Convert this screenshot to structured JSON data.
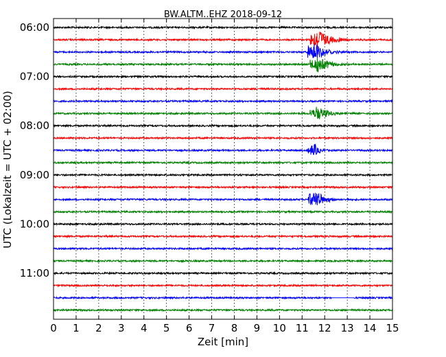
{
  "chart_data": {
    "type": "line",
    "title": "BW.ALTM..EHZ 2018-09-12",
    "xlabel": "Zeit  [min]",
    "ylabel": "UTC (Lokalzeit = UTC + 02:00)",
    "xlim": [
      0,
      15
    ],
    "x_ticks": [
      "0",
      "1",
      "2",
      "3",
      "4",
      "5",
      "6",
      "7",
      "8",
      "9",
      "10",
      "11",
      "12",
      "13",
      "14",
      "15"
    ],
    "y_ticks": [
      {
        "label": "06:00",
        "row": 0
      },
      {
        "label": "07:00",
        "row": 4
      },
      {
        "label": "08:00",
        "row": 8
      },
      {
        "label": "09:00",
        "row": 12
      },
      {
        "label": "10:00",
        "row": 16
      },
      {
        "label": "11:00",
        "row": 20
      }
    ],
    "row_interval_minutes": 15,
    "grid": "vertical-dotted",
    "colors": [
      "#000000",
      "#ff0000",
      "#0000ff",
      "#008000"
    ],
    "series": [
      {
        "row": 0,
        "color": "#000000",
        "noise": 1.0
      },
      {
        "row": 1,
        "color": "#ff0000",
        "noise": 1.0,
        "events": [
          {
            "t": 11.6,
            "amp": 20,
            "decay": 0.5
          }
        ]
      },
      {
        "row": 2,
        "color": "#0000ff",
        "noise": 1.0,
        "events": [
          {
            "t": 11.5,
            "amp": 18,
            "decay": 0.4
          }
        ]
      },
      {
        "row": 3,
        "color": "#008000",
        "noise": 1.0,
        "events": [
          {
            "t": 11.6,
            "amp": 14,
            "decay": 0.5
          }
        ]
      },
      {
        "row": 4,
        "color": "#000000",
        "noise": 1.0
      },
      {
        "row": 5,
        "color": "#ff0000",
        "noise": 1.0
      },
      {
        "row": 6,
        "color": "#0000ff",
        "noise": 1.0
      },
      {
        "row": 7,
        "color": "#008000",
        "noise": 1.0,
        "events": [
          {
            "t": 11.6,
            "amp": 12,
            "decay": 0.5
          }
        ]
      },
      {
        "row": 8,
        "color": "#000000",
        "noise": 1.0
      },
      {
        "row": 9,
        "color": "#ff0000",
        "noise": 1.0
      },
      {
        "row": 10,
        "color": "#0000ff",
        "noise": 1.0,
        "events": [
          {
            "t": 11.5,
            "amp": 12,
            "decay": 0.2
          }
        ]
      },
      {
        "row": 11,
        "color": "#008000",
        "noise": 1.0
      },
      {
        "row": 12,
        "color": "#000000",
        "noise": 1.0
      },
      {
        "row": 13,
        "color": "#ff0000",
        "noise": 1.0
      },
      {
        "row": 14,
        "color": "#0000ff",
        "noise": 1.0,
        "events": [
          {
            "t": 11.5,
            "amp": 16,
            "decay": 0.4
          }
        ]
      },
      {
        "row": 15,
        "color": "#008000",
        "noise": 1.0
      },
      {
        "row": 16,
        "color": "#000000",
        "noise": 1.0
      },
      {
        "row": 17,
        "color": "#ff0000",
        "noise": 1.0
      },
      {
        "row": 18,
        "color": "#0000ff",
        "noise": 1.0
      },
      {
        "row": 19,
        "color": "#008000",
        "noise": 1.0
      },
      {
        "row": 20,
        "color": "#000000",
        "noise": 1.0
      },
      {
        "row": 21,
        "color": "#ff0000",
        "noise": 1.0
      },
      {
        "row": 22,
        "color": "#0000ff",
        "noise": 1.0,
        "flat_from": 12.3,
        "flat_to": 13.3
      },
      {
        "row": 23,
        "color": "#008000",
        "noise": 1.0
      }
    ]
  }
}
